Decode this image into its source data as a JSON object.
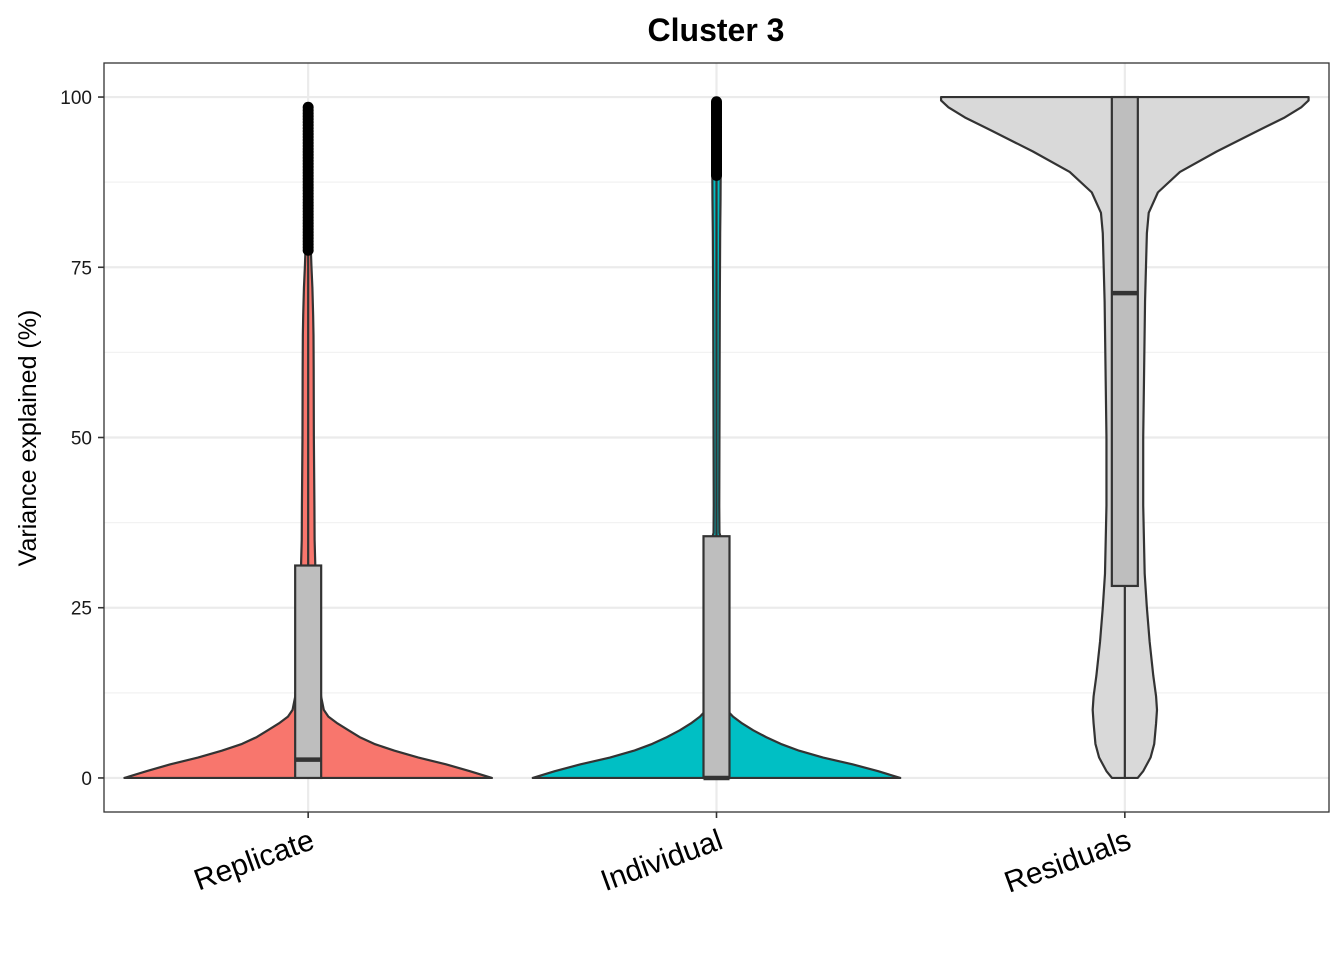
{
  "chart_data": {
    "type": "violin",
    "title": "Cluster 3",
    "xlabel": "",
    "ylabel": "Variance explained (%)",
    "ylim": [
      -5,
      105
    ],
    "yticks": [
      0,
      25,
      50,
      75,
      100
    ],
    "grid": true,
    "legend": "none",
    "categories": [
      "Replicate",
      "Individual",
      "Residuals"
    ],
    "series": [
      {
        "category": "Replicate",
        "fill": "#F8766D",
        "box": {
          "q1": 0,
          "median": 2.7,
          "q3": 31.2,
          "whisker_low": 0,
          "whisker_high": 77.5
        },
        "outliers_range": [
          77.5,
          98.5
        ],
        "density": [
          [
            0,
            1.0
          ],
          [
            1,
            0.88
          ],
          [
            2,
            0.75
          ],
          [
            3,
            0.6
          ],
          [
            4,
            0.47
          ],
          [
            5,
            0.36
          ],
          [
            6,
            0.28
          ],
          [
            7,
            0.22
          ],
          [
            8,
            0.16
          ],
          [
            9,
            0.11
          ],
          [
            10,
            0.085
          ],
          [
            12,
            0.07
          ],
          [
            15,
            0.065
          ],
          [
            18,
            0.065
          ],
          [
            20,
            0.058
          ],
          [
            25,
            0.048
          ],
          [
            30,
            0.04
          ],
          [
            35,
            0.035
          ],
          [
            40,
            0.034
          ],
          [
            50,
            0.031
          ],
          [
            60,
            0.03
          ],
          [
            65,
            0.029
          ],
          [
            68,
            0.027
          ],
          [
            72,
            0.023
          ],
          [
            75,
            0.018
          ],
          [
            78,
            0.014
          ],
          [
            82,
            0.012
          ],
          [
            88,
            0.011
          ],
          [
            94,
            0.009
          ],
          [
            97,
            0.006
          ],
          [
            98.5,
            0.0
          ]
        ]
      },
      {
        "category": "Individual",
        "fill": "#00BFC4",
        "box": {
          "q1": 0,
          "median": 0,
          "q3": 35.5,
          "whisker_low": 0,
          "whisker_high": 88.5
        },
        "outliers_range": [
          88.5,
          99.3
        ],
        "density": [
          [
            0,
            1.0
          ],
          [
            1,
            0.88
          ],
          [
            2,
            0.74
          ],
          [
            3,
            0.58
          ],
          [
            4,
            0.45
          ],
          [
            5,
            0.35
          ],
          [
            6,
            0.27
          ],
          [
            7,
            0.2
          ],
          [
            8,
            0.14
          ],
          [
            9,
            0.09
          ],
          [
            10,
            0.055
          ],
          [
            12,
            0.04
          ],
          [
            15,
            0.035
          ],
          [
            20,
            0.032
          ],
          [
            25,
            0.03
          ],
          [
            30,
            0.028
          ],
          [
            35,
            0.026
          ],
          [
            36,
            0.016
          ],
          [
            40,
            0.015
          ],
          [
            50,
            0.016
          ],
          [
            60,
            0.017
          ],
          [
            70,
            0.018
          ],
          [
            75,
            0.019
          ],
          [
            80,
            0.02
          ],
          [
            85,
            0.022
          ],
          [
            90,
            0.023
          ],
          [
            95,
            0.022
          ],
          [
            98,
            0.016
          ],
          [
            99.3,
            0.0
          ]
        ]
      },
      {
        "category": "Residuals",
        "fill": "#D9D9D9",
        "box": {
          "q1": 28.2,
          "median": 71.2,
          "q3": 100,
          "whisker_low": 0,
          "whisker_high": 100
        },
        "outliers_range": null,
        "density": [
          [
            0,
            0.07
          ],
          [
            1,
            0.1
          ],
          [
            3,
            0.14
          ],
          [
            5,
            0.16
          ],
          [
            8,
            0.17
          ],
          [
            10,
            0.175
          ],
          [
            12,
            0.17
          ],
          [
            15,
            0.155
          ],
          [
            20,
            0.135
          ],
          [
            25,
            0.12
          ],
          [
            30,
            0.108
          ],
          [
            40,
            0.1
          ],
          [
            50,
            0.1
          ],
          [
            60,
            0.105
          ],
          [
            70,
            0.11
          ],
          [
            75,
            0.115
          ],
          [
            80,
            0.12
          ],
          [
            83,
            0.13
          ],
          [
            86,
            0.18
          ],
          [
            89,
            0.3
          ],
          [
            92,
            0.5
          ],
          [
            95,
            0.72
          ],
          [
            97,
            0.87
          ],
          [
            98.5,
            0.96
          ],
          [
            99.5,
            1.0
          ],
          [
            100,
            1.0
          ]
        ]
      }
    ]
  }
}
